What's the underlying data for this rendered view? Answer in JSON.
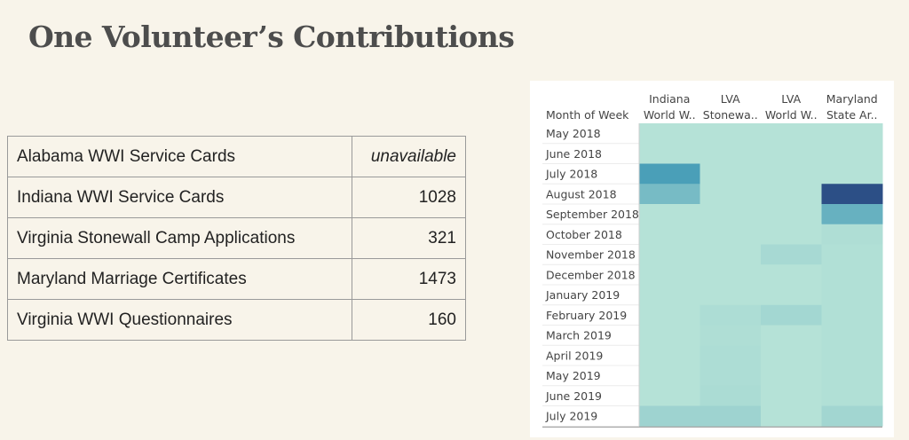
{
  "page": {
    "title": "One Volunteer’s Contributions"
  },
  "table": {
    "rows": [
      {
        "name": "Alabama WWI Service Cards",
        "value": "unavailable"
      },
      {
        "name": "Indiana WWI Service Cards",
        "value": "1028"
      },
      {
        "name": "Virginia Stonewall Camp Applications",
        "value": "321"
      },
      {
        "name": "Maryland Marriage Certificates",
        "value": "1473"
      },
      {
        "name": "Virginia WWI Questionnaires",
        "value": "160"
      }
    ]
  },
  "chart_data": {
    "type": "heatmap",
    "title": "",
    "row_header": "Month of Week",
    "columns": [
      {
        "line1": "Indiana",
        "line2": "World W.."
      },
      {
        "line1": "LVA",
        "line2": "Stonewa.."
      },
      {
        "line1": "LVA",
        "line2": "World W.."
      },
      {
        "line1": "Maryland",
        "line2": "State Ar.."
      }
    ],
    "rows": [
      "May 2018",
      "June 2018",
      "July 2018",
      "August 2018",
      "September 2018",
      "October 2018",
      "November 2018",
      "December 2018",
      "January 2019",
      "February 2019",
      "March 2019",
      "April 2019",
      "May 2019",
      "June 2019",
      "July 2019"
    ],
    "intensity": [
      [
        0.0,
        0.0,
        0.0,
        0.0
      ],
      [
        0.0,
        0.0,
        0.0,
        0.0
      ],
      [
        0.55,
        0.0,
        0.0,
        0.0
      ],
      [
        0.32,
        0.0,
        0.0,
        1.0
      ],
      [
        0.0,
        0.0,
        0.0,
        0.4
      ],
      [
        0.0,
        0.0,
        0.0,
        0.03
      ],
      [
        0.0,
        0.0,
        0.07,
        0.02
      ],
      [
        0.0,
        0.0,
        0.0,
        0.02
      ],
      [
        0.0,
        0.0,
        0.0,
        0.02
      ],
      [
        0.0,
        0.04,
        0.09,
        0.02
      ],
      [
        0.0,
        0.03,
        0.0,
        0.02
      ],
      [
        0.0,
        0.04,
        0.0,
        0.02
      ],
      [
        0.0,
        0.04,
        0.0,
        0.02
      ],
      [
        0.0,
        0.05,
        0.0,
        0.02
      ],
      [
        0.12,
        0.12,
        0.0,
        0.1
      ]
    ],
    "colors": {
      "low": "#b5e2d7",
      "mid": "#4a9fb8",
      "high": "#2c4f86"
    }
  }
}
